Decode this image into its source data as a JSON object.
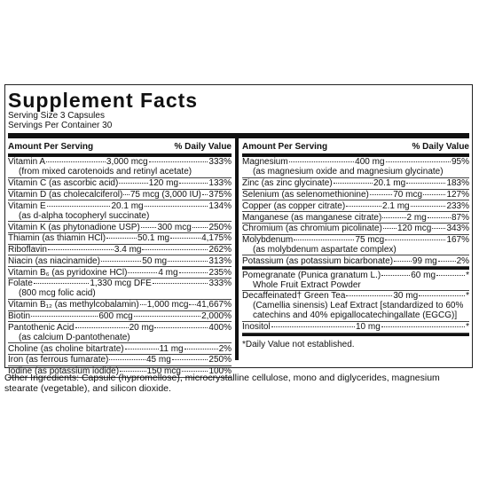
{
  "title": "Supplement Facts",
  "serving_size": "Serving Size 3 Capsules",
  "servings_per_container": "Servings Per Container 30",
  "header": {
    "amount": "Amount Per Serving",
    "dv": "% Daily Value"
  },
  "left": {
    "rows": [
      {
        "name": "Vitamin A",
        "amount": "3,000 mcg",
        "dv": "333%",
        "note": "(from mixed carotenoids and retinyl acetate)"
      },
      {
        "name": "Vitamin C (as ascorbic acid)",
        "amount": "120 mg",
        "dv": "133%"
      },
      {
        "name": "Vitamin D (as cholecalciferol)",
        "amount": "75 mcg (3,000 IU)",
        "dv": "375%"
      },
      {
        "name": "Vitamin E",
        "amount": "20.1 mg",
        "dv": "134%",
        "note": "(as d-alpha tocopheryl succinate)"
      },
      {
        "name": "Vitamin K (as phytonadione USP)",
        "amount": "300 mcg",
        "dv": "250%"
      },
      {
        "name": "Thiamin (as thiamin HCl)",
        "amount": "50.1 mg",
        "dv": "4,175%"
      },
      {
        "name": "Riboflavin",
        "amount": "3.4 mg",
        "dv": "262%"
      },
      {
        "name": "Niacin (as niacinamide)",
        "amount": "50 mg",
        "dv": "313%"
      },
      {
        "name": "Vitamin B₆ (as pyridoxine HCl)",
        "amount": "4 mg",
        "dv": "235%"
      },
      {
        "name": "Folate",
        "amount": "1,330 mcg DFE",
        "dv": "333%",
        "note": "(800 mcg folic acid)"
      },
      {
        "name": "Vitamin B₁₂ (as methylcobalamin)",
        "amount": "1,000 mcg",
        "dv": "41,667%"
      },
      {
        "name": "Biotin",
        "amount": "600 mcg",
        "dv": "2,000%"
      },
      {
        "name": "Pantothenic Acid",
        "amount": "20 mg",
        "dv": "400%",
        "note": "(as calcium D-pantothenate)"
      },
      {
        "name": "Choline (as choline bitartrate)",
        "amount": "11 mg",
        "dv": "2%"
      },
      {
        "name": "Iron (as ferrous fumarate)",
        "amount": "45 mg",
        "dv": "250%"
      },
      {
        "name": "Iodine (as potassium iodide)",
        "amount": "150 mcg",
        "dv": "100%"
      }
    ]
  },
  "right": {
    "sections": [
      {
        "rows": [
          {
            "name": "Magnesium",
            "amount": "400 mg",
            "dv": "95%",
            "note": "(as magnesium oxide and magnesium glycinate)"
          },
          {
            "name": "Zinc (as zinc glycinate)",
            "amount": "20.1 mg",
            "dv": "183%"
          },
          {
            "name": "Selenium (as selenomethionine)",
            "amount": "70 mcg",
            "dv": "127%"
          },
          {
            "name": "Copper (as copper citrate)",
            "amount": "2.1 mg",
            "dv": "233%"
          },
          {
            "name": "Manganese (as manganese citrate)",
            "amount": "2 mg",
            "dv": "87%"
          },
          {
            "name": "Chromium (as chromium picolinate)",
            "amount": "120 mcg",
            "dv": "343%"
          },
          {
            "name": "Molybdenum",
            "amount": "75 mcg",
            "dv": "167%",
            "note": "(as molybdenum aspartate complex)"
          },
          {
            "name": "Potassium (as potassium bicarbonate)",
            "amount": "99 mg",
            "dv": "2%"
          }
        ]
      },
      {
        "rows": [
          {
            "name": "Pomegranate (Punica granatum L.)",
            "amount": "60 mg",
            "dv": "*",
            "note": "Whole Fruit Extract Powder"
          },
          {
            "name": "Decaffeinated† Green Tea",
            "amount": "30 mg",
            "dv": "*",
            "note": "(Camellia sinensis) Leaf Extract [standardized to 60% catechins and 40% epigallocatechingallate (EGCG)]"
          },
          {
            "name": "Inositol",
            "amount": "10 mg",
            "dv": "*"
          }
        ]
      }
    ]
  },
  "footnote": "*Daily Value not established.",
  "other_ingredients": "Other Ingredients: Capsule (hypromellose), microcrystalline cellulose, mono and diglycerides, magnesium stearate (vegetable), and silicon dioxide."
}
